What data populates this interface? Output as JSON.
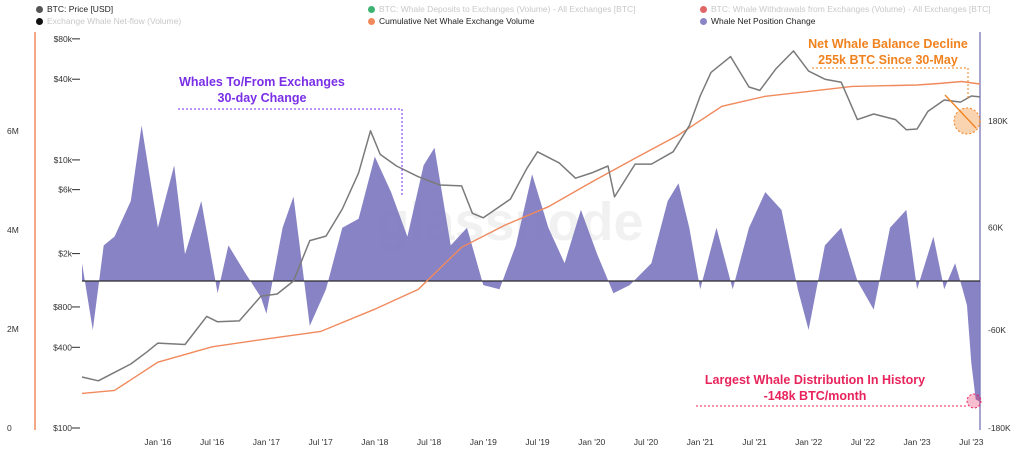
{
  "legend": [
    {
      "label": "BTC: Price [USD]",
      "color": "#555555",
      "faded": false
    },
    {
      "label": "Exchange Whale Net-flow (Volume)",
      "color": "#111111",
      "faded": true
    },
    {
      "label": "BTC: Whale Deposits to Exchanges (Volume) - All Exchanges [BTC]",
      "color": "#3cb371",
      "faded": true
    },
    {
      "label": "Cumulative Net Whale Exchange Volume",
      "color": "#f08a5d",
      "faded": false
    },
    {
      "label": "BTC: Whale Withdrawals from Exchanges (Volume) - All Exchanges [BTC]",
      "color": "#e06666",
      "faded": true
    },
    {
      "label": "Whale Net Position Change",
      "color": "#8a86c4",
      "faded": false
    }
  ],
  "colors": {
    "price": "#7a7a7a",
    "cumulative": "#f08a5d",
    "net_position": "#7d78c0",
    "annotation_purple": "#7a2ee6",
    "annotation_orange": "#f0821e",
    "annotation_pink": "#e8245c",
    "left_axis_line": "#f08a5d",
    "right_axis_line": "#8a86c4",
    "watermark": "#e7e7e7"
  },
  "watermark": "glassnode",
  "annotations": {
    "whales_title": "Whales To/From Exchanges",
    "whales_sub": "30-day Change",
    "balance_title": "Net Whale Balance Decline",
    "balance_sub": "255k BTC Since 30-May",
    "distribution_title": "Largest Whale Distribution In History",
    "distribution_sub": "-148k BTC/month"
  },
  "chart_data": {
    "type": "line",
    "x_ticks": [
      "Jan '16",
      "Jul '16",
      "Jan '17",
      "Jul '17",
      "Jan '18",
      "Jul '18",
      "Jan '19",
      "Jul '19",
      "Jan '20",
      "Jul '20",
      "Jan '21",
      "Jul '21",
      "Jan '22",
      "Jul '22",
      "Jan '23",
      "Jul '23"
    ],
    "x_range": [
      2015.3,
      2023.58
    ],
    "price_axis": {
      "scale": "log",
      "ticks": [
        "$100",
        "$400",
        "$800",
        "$2k",
        "$6k",
        "$10k",
        "$40k",
        "$80k"
      ],
      "values": [
        100,
        400,
        800,
        2000,
        6000,
        10000,
        40000,
        80000
      ],
      "range": [
        100,
        90000
      ]
    },
    "cumulative_axis": {
      "ticks": [
        "0",
        "2M",
        "4M",
        "6M"
      ],
      "values": [
        0,
        2000000,
        4000000,
        6000000
      ],
      "range": [
        0,
        8000000
      ]
    },
    "net_position_axis": {
      "ticks": [
        "180K",
        "60K",
        "-60K",
        "-180K"
      ],
      "values": [
        180000,
        60000,
        -60000,
        -180000
      ],
      "range": [
        -180000,
        300000
      ]
    },
    "series": [
      {
        "name": "BTC: Price [USD]",
        "x": [
          2015.3,
          2015.45,
          2015.6,
          2015.75,
          2015.9,
          2016.0,
          2016.25,
          2016.45,
          2016.55,
          2016.75,
          2016.95,
          2017.1,
          2017.25,
          2017.4,
          2017.55,
          2017.7,
          2017.85,
          2017.96,
          2018.05,
          2018.2,
          2018.4,
          2018.6,
          2018.8,
          2018.9,
          2019.0,
          2019.25,
          2019.4,
          2019.5,
          2019.7,
          2019.85,
          2020.0,
          2020.15,
          2020.21,
          2020.4,
          2020.55,
          2020.75,
          2020.9,
          2021.0,
          2021.1,
          2021.28,
          2021.45,
          2021.55,
          2021.7,
          2021.86,
          2022.0,
          2022.15,
          2022.3,
          2022.45,
          2022.6,
          2022.8,
          2022.9,
          2023.0,
          2023.1,
          2023.25,
          2023.4,
          2023.5,
          2023.58
        ],
        "values": [
          240,
          225,
          260,
          300,
          370,
          430,
          420,
          680,
          620,
          630,
          960,
          1000,
          1250,
          2500,
          2700,
          4300,
          8000,
          16500,
          11000,
          9000,
          7500,
          6500,
          6400,
          4000,
          3700,
          5100,
          8600,
          11500,
          9500,
          7300,
          8000,
          9000,
          5300,
          9300,
          9300,
          11500,
          18000,
          30000,
          45000,
          59000,
          35000,
          33000,
          48000,
          65000,
          46000,
          40000,
          38000,
          20000,
          22000,
          20000,
          16800,
          17000,
          23000,
          28000,
          27000,
          30000,
          29500
        ]
      },
      {
        "name": "Cumulative Net Whale Exchange Volume",
        "x": [
          2015.3,
          2015.6,
          2016.0,
          2016.5,
          2017.0,
          2017.5,
          2018.0,
          2018.4,
          2018.8,
          2019.2,
          2019.6,
          2020.0,
          2020.4,
          2020.8,
          2021.2,
          2021.6,
          2022.0,
          2022.4,
          2022.8,
          2023.0,
          2023.2,
          2023.41,
          2023.58
        ],
        "values": [
          700000,
          760000,
          1330000,
          1640000,
          1800000,
          1950000,
          2400000,
          2800000,
          3650000,
          4100000,
          4470000,
          4970000,
          5450000,
          5920000,
          6500000,
          6700000,
          6800000,
          6900000,
          6920000,
          6930000,
          6960000,
          7000000,
          6950000
        ]
      },
      {
        "name": "Whale Net Position Change",
        "x": [
          2015.3,
          2015.4,
          2015.5,
          2015.6,
          2015.75,
          2015.85,
          2016.0,
          2016.15,
          2016.25,
          2016.4,
          2016.55,
          2016.65,
          2016.8,
          2016.95,
          2017.0,
          2017.15,
          2017.25,
          2017.4,
          2017.55,
          2017.7,
          2017.85,
          2018.0,
          2018.15,
          2018.3,
          2018.45,
          2018.55,
          2018.7,
          2018.85,
          2019.0,
          2019.15,
          2019.3,
          2019.45,
          2019.6,
          2019.75,
          2019.9,
          2020.05,
          2020.2,
          2020.35,
          2020.55,
          2020.7,
          2020.8,
          2020.9,
          2021.0,
          2021.15,
          2021.3,
          2021.45,
          2021.6,
          2021.75,
          2021.9,
          2022.0,
          2022.15,
          2022.3,
          2022.45,
          2022.6,
          2022.75,
          2022.9,
          2023.0,
          2023.15,
          2023.25,
          2023.35,
          2023.42,
          2023.46,
          2023.5,
          2023.54,
          2023.58
        ],
        "values": [
          20000,
          -60000,
          40000,
          50000,
          90000,
          175000,
          60000,
          130000,
          30000,
          90000,
          -15000,
          40000,
          10000,
          -20000,
          -40000,
          60000,
          95000,
          -55000,
          -10000,
          60000,
          70000,
          140000,
          100000,
          50000,
          130000,
          150000,
          40000,
          60000,
          -5000,
          -10000,
          40000,
          120000,
          60000,
          20000,
          80000,
          30000,
          -15000,
          -5000,
          20000,
          90000,
          110000,
          60000,
          -10000,
          60000,
          -10000,
          60000,
          100000,
          80000,
          -10000,
          -60000,
          40000,
          60000,
          0,
          -35000,
          60000,
          80000,
          -10000,
          50000,
          -10000,
          20000,
          -10000,
          -30000,
          -100000,
          -145000,
          -148000
        ]
      }
    ]
  }
}
